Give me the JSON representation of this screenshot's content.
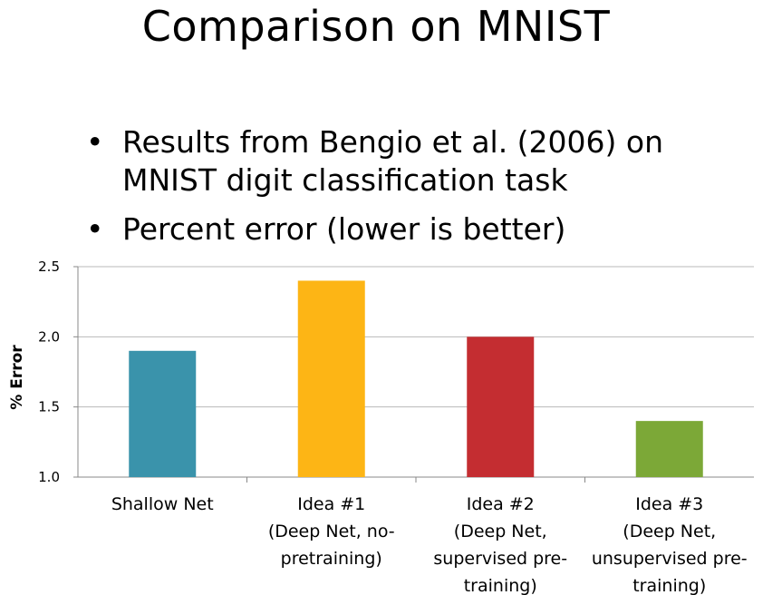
{
  "slide": {
    "title": "Comparison on MNIST",
    "bullets": [
      "Results from Bengio et al. (2006) on MNIST digit classification task",
      "Percent error (lower is better)"
    ]
  },
  "chart_data": {
    "type": "bar",
    "categories": [
      [
        "Shallow Net"
      ],
      [
        "Idea #1",
        "(Deep Net, no-",
        "pretraining)"
      ],
      [
        "Idea #2",
        "(Deep Net,",
        "supervised pre-",
        "training)"
      ],
      [
        "Idea #3",
        "(Deep Net,",
        "unsupervised pre-",
        "training)"
      ]
    ],
    "values": [
      1.9,
      2.4,
      2.0,
      1.4
    ],
    "colors": [
      "#3A93AB",
      "#FDB515",
      "#C42D31",
      "#7CA837"
    ],
    "ylabel": "% Error",
    "ylim": [
      1.0,
      2.5
    ],
    "yticks": [
      "1.0",
      "1.5",
      "2.0",
      "2.5"
    ],
    "grid": true,
    "legend": "none"
  }
}
